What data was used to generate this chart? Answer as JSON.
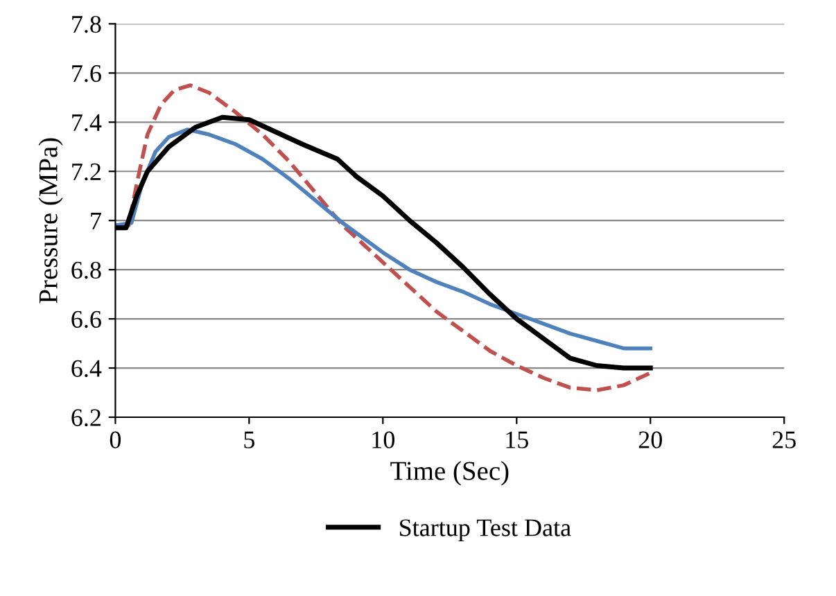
{
  "chart_data": {
    "type": "line",
    "xlabel": "Time (Sec)",
    "ylabel": "Pressure (MPa)",
    "xlim": [
      0,
      25
    ],
    "xticks": [
      0,
      5,
      10,
      15,
      20,
      25
    ],
    "ylim": [
      6.2,
      7.8
    ],
    "yticks": [
      6.2,
      6.4,
      6.6,
      6.8,
      7,
      7.2,
      7.4,
      7.6,
      7.8
    ],
    "grid": "y",
    "legend": "bottom",
    "marker": "none",
    "series": [
      {
        "color": "#c0504d",
        "line_style": "dashed",
        "x": [
          0,
          0.5,
          0.8,
          1.2,
          1.7,
          2.2,
          2.8,
          3.5,
          4.5,
          5.5,
          6.5,
          7.5,
          8.5,
          10,
          11,
          12,
          13,
          14,
          15,
          16,
          17,
          18,
          19,
          20
        ],
        "values": [
          6.98,
          6.98,
          7.15,
          7.35,
          7.47,
          7.53,
          7.55,
          7.52,
          7.44,
          7.35,
          7.24,
          7.11,
          6.98,
          6.83,
          6.73,
          6.63,
          6.55,
          6.47,
          6.41,
          6.36,
          6.32,
          6.31,
          6.33,
          6.38
        ]
      },
      {
        "color": "#4f81bd",
        "line_style": "solid",
        "x": [
          0,
          0.6,
          1,
          1.5,
          2,
          2.7,
          3.5,
          4.5,
          5.5,
          6.5,
          7.5,
          8.5,
          10,
          11,
          12,
          13,
          14,
          15,
          16,
          17,
          18,
          19,
          20
        ],
        "values": [
          6.98,
          6.99,
          7.15,
          7.28,
          7.34,
          7.37,
          7.35,
          7.31,
          7.25,
          7.17,
          7.08,
          6.99,
          6.87,
          6.8,
          6.75,
          6.71,
          6.66,
          6.62,
          6.58,
          6.54,
          6.51,
          6.48,
          6.48
        ]
      },
      {
        "name": "Startup Test Data",
        "color": "#000000",
        "line_style": "solid",
        "x": [
          0,
          0.4,
          0.8,
          1.2,
          2,
          3,
          4,
          5,
          6,
          7,
          8.3,
          9,
          10,
          11,
          12,
          13,
          14,
          15,
          16,
          17,
          18,
          19,
          20
        ],
        "values": [
          6.97,
          6.97,
          7.1,
          7.2,
          7.3,
          7.38,
          7.42,
          7.41,
          7.36,
          7.31,
          7.25,
          7.18,
          7.1,
          7.0,
          6.91,
          6.81,
          6.7,
          6.6,
          6.52,
          6.44,
          6.41,
          6.4,
          6.4
        ]
      }
    ]
  }
}
